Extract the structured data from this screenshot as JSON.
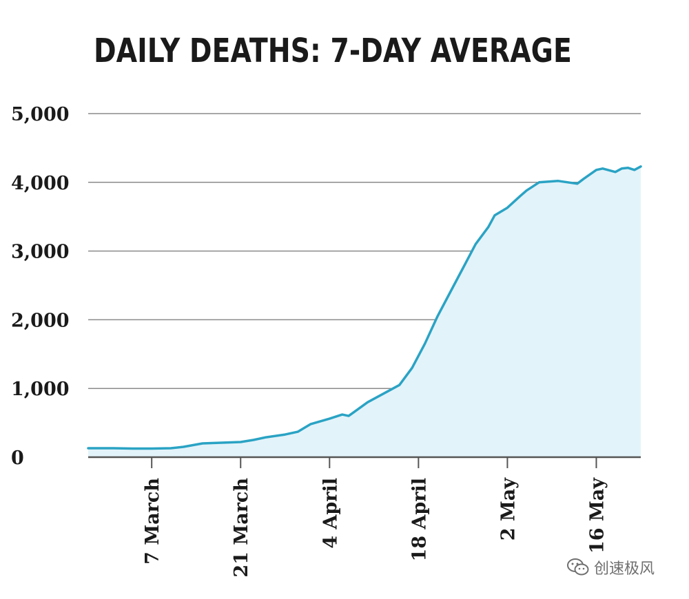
{
  "chart_data": {
    "type": "area",
    "title": "DAILY DEATHS: 7-DAY AVERAGE",
    "xlabel": "",
    "ylabel": "",
    "ylim": [
      0,
      5000
    ],
    "yticks": [
      0,
      1000,
      2000,
      3000,
      4000,
      5000
    ],
    "ytick_labels": [
      "0",
      "1,000",
      "2,000",
      "3,000",
      "4,000",
      "5,000"
    ],
    "xlim": [
      -7,
      80
    ],
    "xticks": [
      {
        "day": 3,
        "label": "7 March"
      },
      {
        "day": 17,
        "label": "21 March"
      },
      {
        "day": 31,
        "label": "4 April"
      },
      {
        "day": 45,
        "label": "18 April"
      },
      {
        "day": 59,
        "label": "2 May"
      },
      {
        "day": 73,
        "label": "16 May"
      }
    ],
    "grid": true,
    "series": [
      {
        "name": "Daily deaths (7-day average)",
        "color": "#2aa3c4",
        "fill": "#e3f3fa",
        "x": [
          -7,
          -3,
          0,
          3,
          6,
          8,
          11,
          14,
          17,
          19,
          21,
          24,
          26,
          28,
          31,
          33,
          34,
          37,
          40,
          42,
          44,
          46,
          48,
          50,
          52,
          54,
          56,
          57,
          59,
          61,
          62,
          64,
          67,
          70,
          71,
          73,
          74,
          76,
          77,
          78,
          79,
          80
        ],
        "values": [
          130,
          130,
          125,
          125,
          130,
          150,
          200,
          210,
          220,
          250,
          290,
          330,
          370,
          480,
          560,
          620,
          600,
          800,
          950,
          1050,
          1300,
          1650,
          2050,
          2400,
          2750,
          3100,
          3350,
          3520,
          3630,
          3800,
          3880,
          4000,
          4020,
          3980,
          4050,
          4180,
          4200,
          4150,
          4200,
          4210,
          4180,
          4230
        ]
      }
    ]
  },
  "watermark": {
    "text": "创速极风",
    "icon": "wechat-icon"
  }
}
